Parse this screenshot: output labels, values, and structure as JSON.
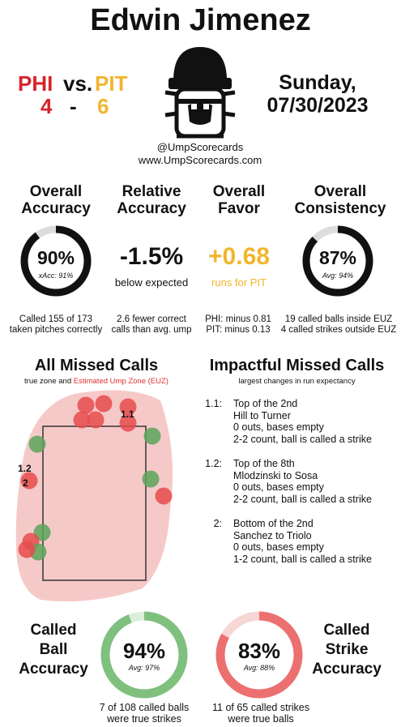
{
  "header": {
    "umpire": "Edwin Jimenez",
    "away_team": "PHI",
    "home_team": "PIT",
    "versus": "vs.",
    "away_score": "4",
    "dash": "-",
    "home_score": "6",
    "day": "Sunday,",
    "date": "07/30/2023",
    "handle": "@UmpScorecards",
    "website": "www.UmpScorecards.com"
  },
  "colors": {
    "phi": "#d8232a",
    "pit": "#f2b52c",
    "ball": "#5aa45a",
    "strike": "#e64c4c"
  },
  "stats": {
    "overall_accuracy": {
      "title1": "Overall",
      "title2": "Accuracy",
      "value": "90%",
      "xacc": "xAcc: 91%",
      "fill": 0.9,
      "note1": "Called 155 of 173",
      "note2": "taken pitches correctly"
    },
    "relative_accuracy": {
      "title1": "Relative",
      "title2": "Accuracy",
      "value": "-1.5%",
      "sub": "below expected",
      "note1": "2.6 fewer correct",
      "note2": "calls than avg. ump"
    },
    "overall_favor": {
      "title1": "Overall",
      "title2": "Favor",
      "value": "+0.68",
      "sub": "runs for PIT",
      "note1": "PHI: minus 0.81",
      "note2": "PIT: minus 0.13"
    },
    "overall_consistency": {
      "title1": "Overall",
      "title2": "Consistency",
      "value": "87%",
      "avg": "Avg: 94%",
      "fill": 0.87,
      "note1": "19 called balls inside EUZ",
      "note2": "4 called strikes outside EUZ"
    }
  },
  "missed": {
    "title": "All Missed Calls",
    "legend_prefix": "true zone and",
    "legend_euz": "Estimated Ump Zone (EUZ)",
    "labels": {
      "l11": "1.1",
      "l12": "1.2",
      "l2": "2"
    }
  },
  "impactful": {
    "title": "Impactful Missed Calls",
    "subtitle": "largest changes in run expectancy",
    "calls": [
      {
        "num": "1.1:",
        "line1": "Top of the 2nd",
        "line2": "Hill to Turner",
        "line3": "0 outs, bases empty",
        "line4": "2-2 count, ball is called a strike"
      },
      {
        "num": "1.2:",
        "line1": "Top of the 8th",
        "line2": "Mlodzinski to Sosa",
        "line3": "0 outs, bases empty",
        "line4": "2-2 count, ball is called a strike"
      },
      {
        "num": "2:",
        "line1": "Bottom of the 2nd",
        "line2": "Sanchez to Triolo",
        "line3": "0 outs, bases empty",
        "line4": "1-2 count, ball is called a strike"
      }
    ]
  },
  "called_ball": {
    "label1": "Called",
    "label2": "Ball",
    "label3": "Accuracy",
    "value": "94%",
    "avg": "Avg: 97%",
    "fill": 0.94,
    "note1": "7 of 108 called balls",
    "note2": "were true strikes"
  },
  "called_strike": {
    "label1": "Called",
    "label2": "Strike",
    "label3": "Accuracy",
    "value": "83%",
    "avg": "Avg: 88%",
    "fill": 0.83,
    "note1": "11 of 65 called strikes",
    "note2": "were true balls"
  }
}
